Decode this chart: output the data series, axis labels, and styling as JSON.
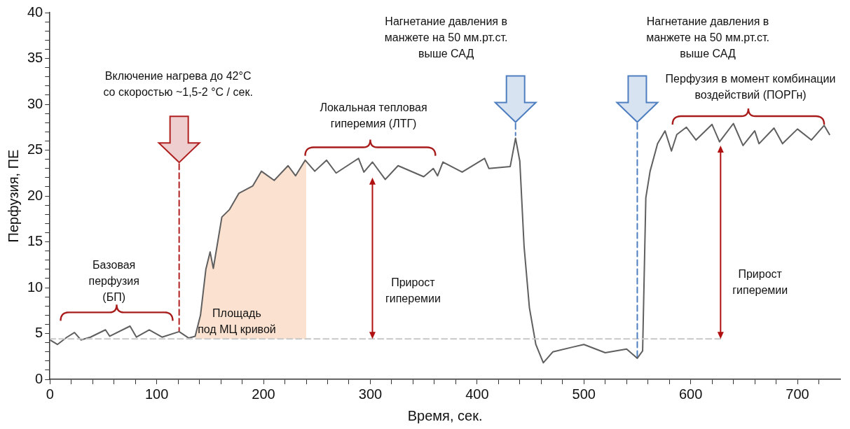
{
  "chart_data": {
    "type": "line",
    "xlabel": "Время, сек.",
    "ylabel": "Перфузия, ПЕ",
    "xlim": [
      0,
      740
    ],
    "xticks": [
      0,
      {
        "value": 20,
        "label": null
      },
      {
        "value": 40,
        "label": null
      },
      {
        "value": 60,
        "label": null
      },
      {
        "value": 80,
        "label": null
      },
      100,
      {
        "value": 120,
        "label": null
      },
      {
        "value": 140,
        "label": null
      },
      {
        "value": 160,
        "label": null
      },
      {
        "value": 180,
        "label": null
      },
      200,
      {
        "value": 220,
        "label": null
      },
      {
        "value": 240,
        "label": null
      },
      {
        "value": 260,
        "label": null
      },
      {
        "value": 280,
        "label": null
      },
      300,
      {
        "value": 320,
        "label": null
      },
      {
        "value": 340,
        "label": null
      },
      {
        "value": 360,
        "label": null
      },
      {
        "value": 380,
        "label": null
      },
      400,
      {
        "value": 420,
        "label": null
      },
      {
        "value": 440,
        "label": null
      },
      {
        "value": 460,
        "label": null
      },
      {
        "value": 480,
        "label": null
      },
      500,
      {
        "value": 520,
        "label": null
      },
      {
        "value": 540,
        "label": null
      },
      {
        "value": 560,
        "label": null
      },
      {
        "value": 580,
        "label": null
      },
      600,
      {
        "value": 620,
        "label": null
      },
      {
        "value": 640,
        "label": null
      },
      {
        "value": 660,
        "label": null
      },
      {
        "value": 680,
        "label": null
      },
      700,
      {
        "value": 720,
        "label": null
      }
    ],
    "ylim": [
      0,
      40
    ],
    "yticks": [
      0,
      {
        "value": 1,
        "label": null
      },
      {
        "value": 2,
        "label": null
      },
      {
        "value": 3,
        "label": null
      },
      {
        "value": 4,
        "label": null
      },
      5,
      {
        "value": 6,
        "label": null
      },
      {
        "value": 7,
        "label": null
      },
      {
        "value": 8,
        "label": null
      },
      {
        "value": 9,
        "label": null
      },
      10,
      {
        "value": 11,
        "label": null
      },
      {
        "value": 12,
        "label": null
      },
      {
        "value": 13,
        "label": null
      },
      {
        "value": 14,
        "label": null
      },
      15,
      {
        "value": 16,
        "label": null
      },
      {
        "value": 17,
        "label": null
      },
      {
        "value": 18,
        "label": null
      },
      {
        "value": 19,
        "label": null
      },
      20,
      {
        "value": 21,
        "label": null
      },
      {
        "value": 22,
        "label": null
      },
      {
        "value": 23,
        "label": null
      },
      {
        "value": 24,
        "label": null
      },
      25,
      {
        "value": 26,
        "label": null
      },
      {
        "value": 27,
        "label": null
      },
      {
        "value": 28,
        "label": null
      },
      {
        "value": 29,
        "label": null
      },
      30,
      {
        "value": 31,
        "label": null
      },
      {
        "value": 32,
        "label": null
      },
      {
        "value": 33,
        "label": null
      },
      {
        "value": 34,
        "label": null
      },
      35,
      {
        "value": 36,
        "label": null
      },
      {
        "value": 37,
        "label": null
      },
      {
        "value": 38,
        "label": null
      },
      {
        "value": 39,
        "label": null
      },
      40
    ],
    "grid": false,
    "legend": false,
    "marker": "none",
    "series": [
      {
        "type": "area",
        "color": "#fbe1cf",
        "x": [
          136,
          141,
          146,
          150,
          153,
          161,
          168,
          177,
          190,
          198,
          210,
          223,
          230,
          239,
          240
        ],
        "values": [
          4.7,
          7.0,
          12.0,
          13.9,
          12.1,
          17.7,
          18.5,
          20.3,
          21.1,
          22.7,
          21.7,
          23.3,
          22.2,
          23.9,
          23.7
        ]
      },
      {
        "color": "#5f5f5f",
        "x": [
          0,
          7,
          16,
          23,
          29,
          38,
          52,
          56,
          75,
          81,
          93,
          105,
          121,
          130,
          136,
          141,
          146,
          150,
          153,
          161,
          168,
          177,
          190,
          198,
          210,
          223,
          230,
          239,
          248,
          259,
          268,
          289,
          294,
          302,
          314,
          326,
          350,
          359,
          363,
          368,
          386,
          407,
          411,
          431,
          436,
          440,
          444,
          449,
          455,
          462,
          471,
          489,
          500,
          520,
          540,
          550,
          555,
          558,
          562,
          569,
          576,
          582,
          587,
          596,
          605,
          620,
          627,
          640,
          649,
          660,
          664,
          678,
          686,
          700,
          713,
          725,
          730
        ],
        "values": [
          4.3,
          3.8,
          4.6,
          5.1,
          4.3,
          4.6,
          5.4,
          4.7,
          5.8,
          4.6,
          5.4,
          4.6,
          5.2,
          4.5,
          4.7,
          7.0,
          12.0,
          13.9,
          12.1,
          17.7,
          18.5,
          20.3,
          21.1,
          22.7,
          21.7,
          23.3,
          22.2,
          23.9,
          22.7,
          23.9,
          22.5,
          24.1,
          22.6,
          23.7,
          21.8,
          23.3,
          22.1,
          23.0,
          22.2,
          23.7,
          22.6,
          24.1,
          23.0,
          23.2,
          26.3,
          23.8,
          14.5,
          7.8,
          3.8,
          1.8,
          3.0,
          3.5,
          3.8,
          2.9,
          3.3,
          2.3,
          3.1,
          19.8,
          22.7,
          25.7,
          27.1,
          24.9,
          26.7,
          27.5,
          26.1,
          27.8,
          25.9,
          27.9,
          25.5,
          27.1,
          25.7,
          27.4,
          25.7,
          27.3,
          26.1,
          27.7,
          26.7
        ]
      },
      {
        "color": "#c8c8c8",
        "line_style": "dashed",
        "x": [
          0,
          630
        ],
        "values": [
          4.4,
          4.4
        ]
      },
      {
        "color": "#b02020",
        "line_style": "dashed",
        "x": [
          121,
          121
        ],
        "values": [
          23.5,
          5.3
        ]
      },
      {
        "color": "#4f7ec0",
        "line_style": "dashed",
        "x": [
          436,
          436
        ],
        "values": [
          27.9,
          26.6
        ]
      },
      {
        "color": "#4f7ec0",
        "line_style": "dashed",
        "x": [
          550,
          550
        ],
        "values": [
          27.9,
          2.5
        ]
      }
    ],
    "annotations": [
      "Базовая\nперфузия\n(БП)",
      "Включение нагрева до 42°C\nсо скоростью ~1,5-2 °C / сек.",
      "Локальная тепловая\nгиперемия (ЛТГ)",
      "Нагнетание давления в\nманжете на 50 мм.рт.ст.\nвыше САД",
      "Нагнетание давления в\nманжете на 50 мм.рт.ст.\nвыше САД",
      "Перфузия в момент комбинации\nвоздействий (ПОРГн)",
      "Площадь\nпод МЦ кривой",
      "Прирост\nгиперемии",
      "Прирост\nгиперемии"
    ]
  }
}
